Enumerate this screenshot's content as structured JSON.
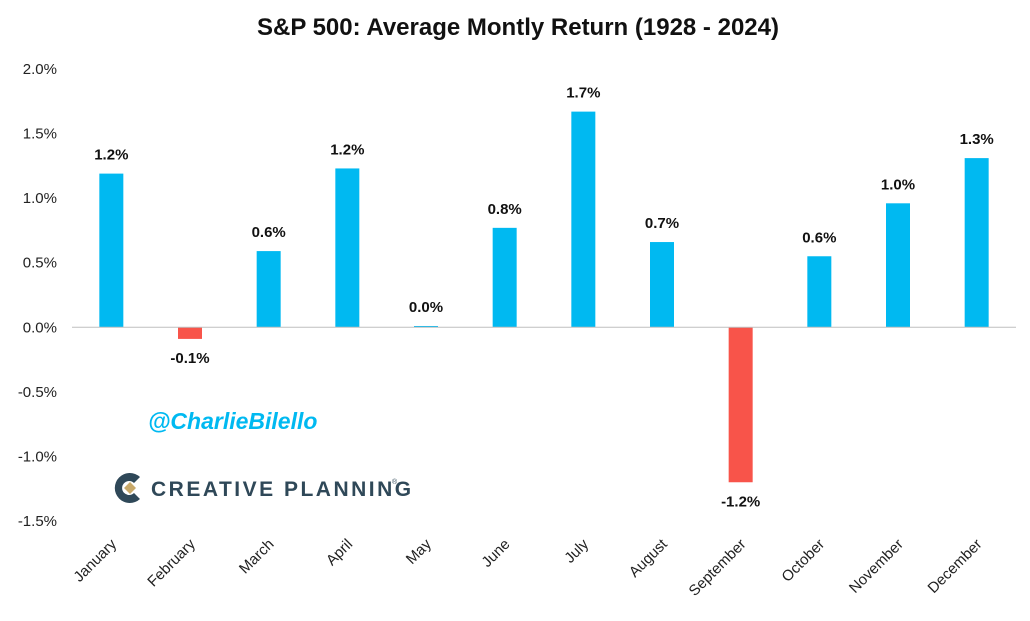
{
  "chart_data": {
    "type": "bar",
    "title": "S&P 500: Average Montly Return (1928 - 2024)",
    "xlabel": "",
    "ylabel": "",
    "ylim": [
      -1.5,
      2.0
    ],
    "ytick_values": [
      2.0,
      1.5,
      1.0,
      0.5,
      0.0,
      -0.5,
      -1.0,
      -1.5
    ],
    "ytick_labels": [
      "2.0%",
      "1.5%",
      "1.0%",
      "0.5%",
      "0.0%",
      "-0.5%",
      "-1.0%",
      "-1.5%"
    ],
    "categories": [
      "January",
      "February",
      "March",
      "April",
      "May",
      "June",
      "July",
      "August",
      "September",
      "October",
      "November",
      "December"
    ],
    "values": [
      1.19,
      -0.09,
      0.59,
      1.23,
      0.01,
      0.77,
      1.67,
      0.66,
      -1.2,
      0.55,
      0.96,
      1.31
    ],
    "data_labels": [
      "1.2%",
      "-0.1%",
      "0.6%",
      "1.2%",
      "0.0%",
      "0.8%",
      "1.7%",
      "0.7%",
      "-1.2%",
      "0.6%",
      "1.0%",
      "1.3%"
    ],
    "grid": false,
    "legend": "none",
    "colors": {
      "positive": "#00B9F1",
      "negative": "#F8544A"
    }
  },
  "watermark": {
    "handle": "@CharlieBilello",
    "handle_color": "#00B9F1",
    "brand_name": "CREATIVE PLANNING",
    "brand_mark": "®",
    "brand_color": "#2F4858",
    "logo_accent": "#C8A96A"
  }
}
